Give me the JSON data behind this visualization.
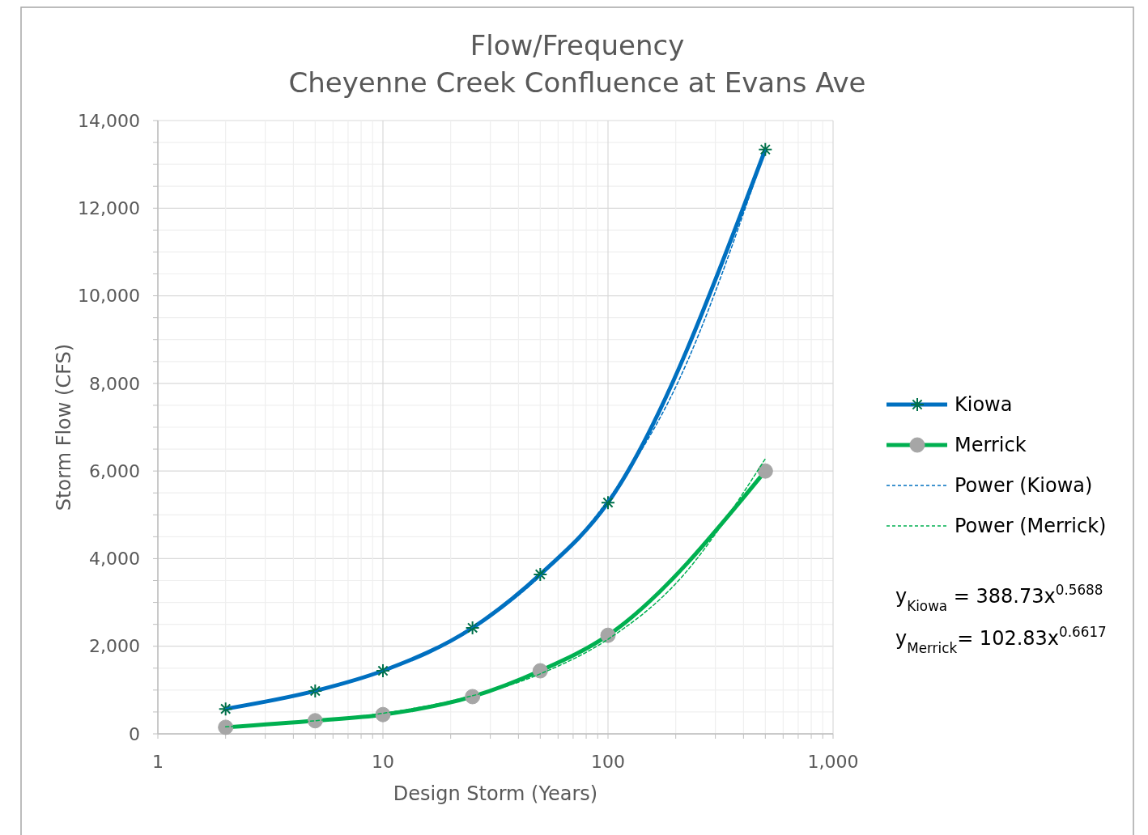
{
  "chart_data": {
    "type": "line",
    "title": "Flow/Frequency",
    "subtitle": "Cheyenne Creek Confluence at Evans Ave",
    "xlabel": "Design Storm (Years)",
    "ylabel": "Storm Flow (CFS)",
    "log": "x",
    "xlim": [
      1,
      1000
    ],
    "xticks": [
      {
        "value": 1,
        "label": "1"
      },
      {
        "value": 2,
        "label": null
      },
      {
        "value": 3,
        "label": null
      },
      {
        "value": 4,
        "label": null
      },
      {
        "value": 5,
        "label": null
      },
      {
        "value": 6,
        "label": null
      },
      {
        "value": 7,
        "label": null
      },
      {
        "value": 8,
        "label": null
      },
      {
        "value": 9,
        "label": null
      },
      {
        "value": 10,
        "label": "10"
      },
      {
        "value": 20,
        "label": null
      },
      {
        "value": 30,
        "label": null
      },
      {
        "value": 40,
        "label": null
      },
      {
        "value": 50,
        "label": null
      },
      {
        "value": 60,
        "label": null
      },
      {
        "value": 70,
        "label": null
      },
      {
        "value": 80,
        "label": null
      },
      {
        "value": 90,
        "label": null
      },
      {
        "value": 100,
        "label": "100"
      },
      {
        "value": 200,
        "label": null
      },
      {
        "value": 300,
        "label": null
      },
      {
        "value": 400,
        "label": null
      },
      {
        "value": 500,
        "label": null
      },
      {
        "value": 600,
        "label": null
      },
      {
        "value": 700,
        "label": null
      },
      {
        "value": 800,
        "label": null
      },
      {
        "value": 900,
        "label": null
      },
      {
        "value": 1000,
        "label": "1,000"
      }
    ],
    "ylim": [
      0,
      14000
    ],
    "yticks": [
      {
        "value": 0,
        "label": "0"
      },
      {
        "value": 500,
        "label": null
      },
      {
        "value": 1000,
        "label": null
      },
      {
        "value": 1500,
        "label": null
      },
      {
        "value": 2000,
        "label": "2,000"
      },
      {
        "value": 2500,
        "label": null
      },
      {
        "value": 3000,
        "label": null
      },
      {
        "value": 3500,
        "label": null
      },
      {
        "value": 4000,
        "label": "4,000"
      },
      {
        "value": 4500,
        "label": null
      },
      {
        "value": 5000,
        "label": null
      },
      {
        "value": 5500,
        "label": null
      },
      {
        "value": 6000,
        "label": "6,000"
      },
      {
        "value": 6500,
        "label": null
      },
      {
        "value": 7000,
        "label": null
      },
      {
        "value": 7500,
        "label": null
      },
      {
        "value": 8000,
        "label": "8,000"
      },
      {
        "value": 8500,
        "label": null
      },
      {
        "value": 9000,
        "label": null
      },
      {
        "value": 9500,
        "label": null
      },
      {
        "value": 10000,
        "label": "10,000"
      },
      {
        "value": 10500,
        "label": null
      },
      {
        "value": 11000,
        "label": null
      },
      {
        "value": 11500,
        "label": null
      },
      {
        "value": 12000,
        "label": "12,000"
      },
      {
        "value": 12500,
        "label": null
      },
      {
        "value": 13000,
        "label": null
      },
      {
        "value": 13500,
        "label": null
      },
      {
        "value": 14000,
        "label": "14,000"
      }
    ],
    "grid": true,
    "legend": "right",
    "series": [
      {
        "name": "Kiowa",
        "color": "#0070c0",
        "marker": "cross",
        "x": [
          2,
          5,
          10,
          25,
          50,
          100,
          500
        ],
        "values": [
          570,
          980,
          1440,
          2420,
          3640,
          5280,
          13340
        ]
      },
      {
        "name": "Merrick",
        "color": "#00b050",
        "marker": "circle",
        "x": [
          2,
          5,
          10,
          25,
          50,
          100,
          500
        ],
        "values": [
          150,
          300,
          440,
          850,
          1440,
          2250,
          6000
        ]
      },
      {
        "name": "Power (Kiowa)",
        "color": "#0070c0",
        "marker": "none",
        "line_style": "dashed",
        "x": [
          2,
          5,
          10,
          20,
          50,
          100,
          200,
          500
        ],
        "values": [
          580,
          970,
          1440,
          2140,
          3600,
          5340,
          7920,
          13330
        ]
      },
      {
        "name": "Power (Merrick)",
        "color": "#00b050",
        "marker": "none",
        "line_style": "dashed",
        "x": [
          2,
          5,
          10,
          20,
          50,
          100,
          200,
          500
        ],
        "values": [
          160,
          300,
          470,
          750,
          1370,
          2160,
          3430,
          6280
        ]
      }
    ],
    "annotations": [
      "y$_{Kiowa}$ = 388.73x$^{0.5688}$",
      "y$_{Merrick}$= 102.83x$^{0.6617}$"
    ]
  }
}
